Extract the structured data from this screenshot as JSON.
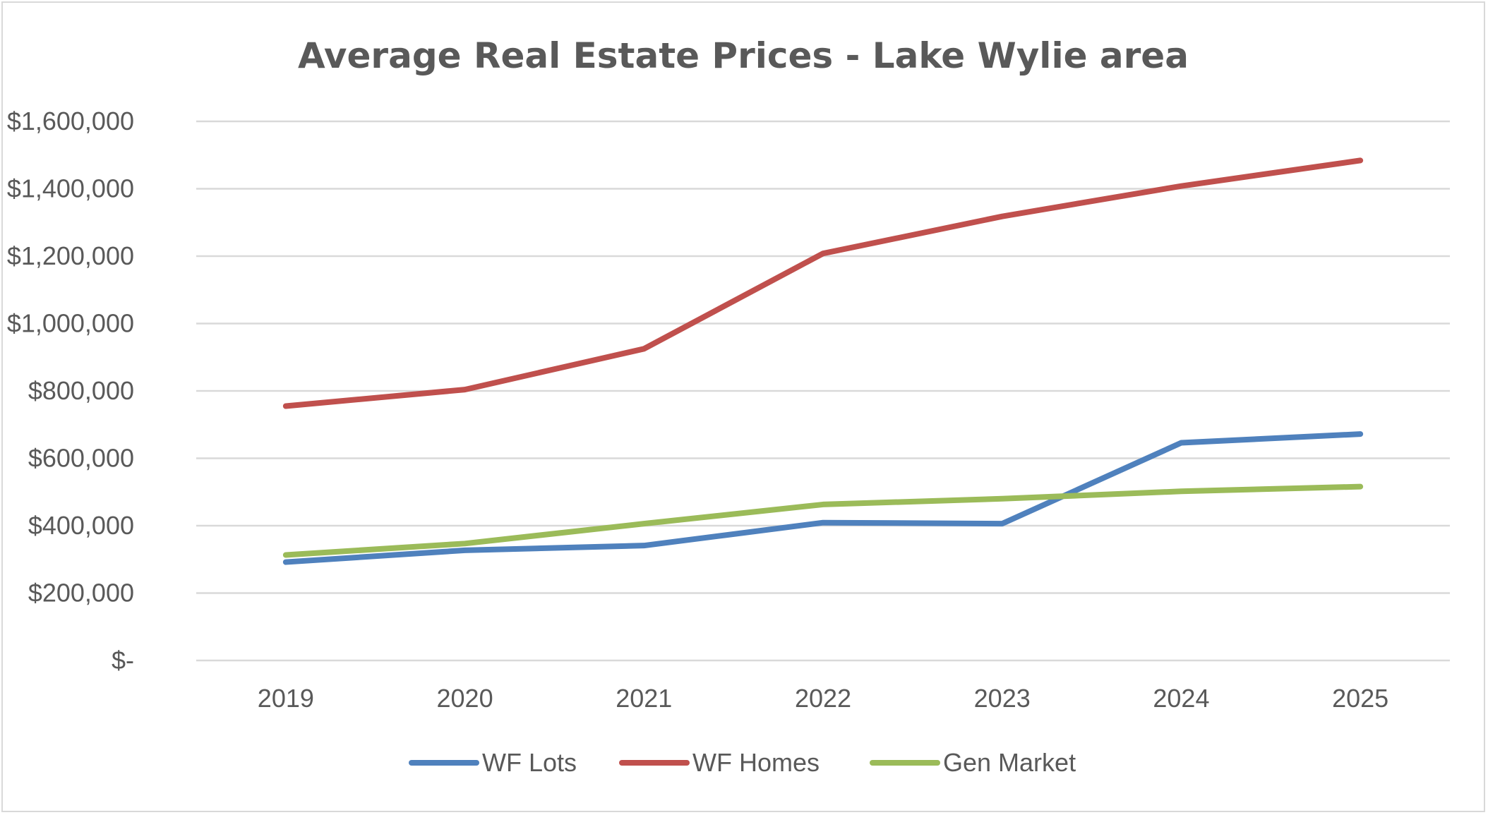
{
  "chart_data": {
    "type": "line",
    "title": "Average Real Estate Prices - Lake Wylie area",
    "xlabel": "",
    "ylabel": "",
    "categories": [
      "2019",
      "2020",
      "2021",
      "2022",
      "2023",
      "2024",
      "2025"
    ],
    "ylim": [
      0,
      1600000
    ],
    "y_ticks": [
      0,
      200000,
      400000,
      600000,
      800000,
      1000000,
      1200000,
      1400000,
      1600000
    ],
    "y_tick_labels": [
      "$-",
      "$200,000",
      "$400,000",
      "$600,000",
      "$800,000",
      "$1,000,000",
      "$1,200,000",
      "$1,400,000",
      "$1,600,000"
    ],
    "grid": true,
    "legend_position": "bottom",
    "series": [
      {
        "name": "WF Lots",
        "color": "#4f81bd",
        "values": [
          292000,
          327000,
          341000,
          409000,
          406000,
          646000,
          672000
        ]
      },
      {
        "name": "WF Homes",
        "color": "#c0504d",
        "values": [
          755000,
          804000,
          925000,
          1208000,
          1318000,
          1408000,
          1484000
        ]
      },
      {
        "name": "Gen Market",
        "color": "#9bbb59",
        "values": [
          313000,
          347000,
          406000,
          463000,
          480000,
          502000,
          516000
        ]
      }
    ]
  }
}
